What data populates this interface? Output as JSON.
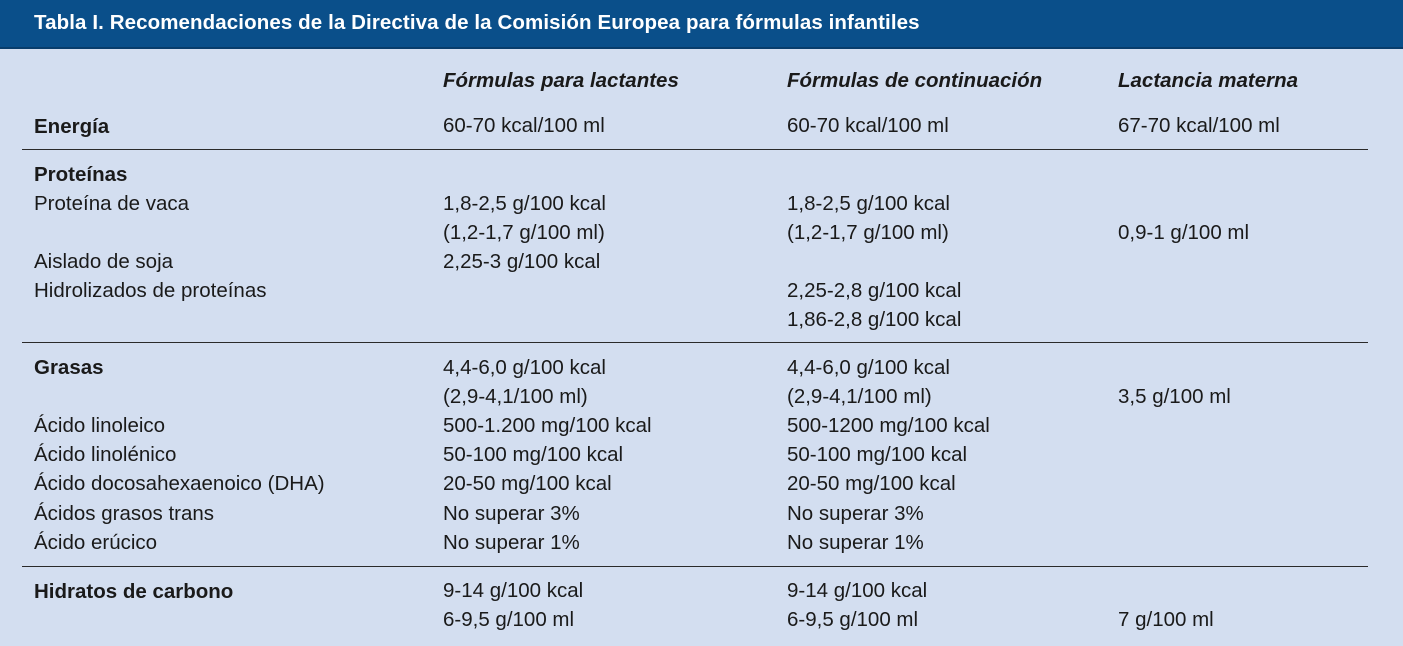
{
  "table": {
    "title": "Tabla I.  Recomendaciones de la Directiva de la Comisión Europea para fórmulas infantiles",
    "headers": {
      "col1": "Fórmulas para lactantes",
      "col2": "Fórmulas de continuación",
      "col3": "Lactancia materna"
    },
    "energia": {
      "label": "Energía",
      "col1": "60-70 kcal/100 ml",
      "col2": "60-70 kcal/100 ml",
      "col3": "67-70 kcal/100 ml"
    },
    "proteinas": {
      "label": "Proteínas",
      "vaca_label": "Proteína de vaca",
      "vaca_col1_a": "1,8-2,5 g/100 kcal",
      "vaca_col1_b": "(1,2-1,7 g/100 ml)",
      "vaca_col2_a": "1,8-2,5 g/100 kcal",
      "vaca_col2_b": "(1,2-1,7 g/100 ml)",
      "col3": "0,9-1 g/100 ml",
      "soja_label": "Aislado de soja",
      "soja_col1": "2,25-3 g/100 kcal",
      "hidro_label": "Hidrolizados de proteínas",
      "hidro_col2_a": "2,25-2,8 g/100 kcal",
      "hidro_col2_b": "1,86-2,8 g/100 kcal"
    },
    "grasas": {
      "label": "Grasas",
      "col1_a": "4,4-6,0 g/100 kcal",
      "col1_b": "(2,9-4,1/100 ml)",
      "col2_a": "4,4-6,0 g/100 kcal",
      "col2_b": "(2,9-4,1/100 ml)",
      "col3": "3,5 g/100 ml",
      "linoleico_label": "Ácido linoleico",
      "linoleico_col1": "500-1.200 mg/100 kcal",
      "linoleico_col2": "500-1200 mg/100 kcal",
      "linolenico_label": "Ácido linolénico",
      "linolenico_col1": "50-100 mg/100 kcal",
      "linolenico_col2": "50-100 mg/100 kcal",
      "dha_label": "Ácido docosahexaenoico (DHA)",
      "dha_col1": "20-50 mg/100 kcal",
      "dha_col2": "20-50 mg/100 kcal",
      "trans_label": "Ácidos grasos trans",
      "trans_col1": "No superar 3%",
      "trans_col2": "No superar 3%",
      "erucico_label": "Ácido erúcico",
      "erucico_col1": "No superar 1%",
      "erucico_col2": "No superar 1%"
    },
    "hidratos": {
      "label": "Hidratos de carbono",
      "col1_a": "9-14 g/100 kcal",
      "col1_b": "6-9,5 g/100 ml",
      "col2_a": "9-14 g/100 kcal",
      "col2_b": "6-9,5 g/100 ml",
      "col3": "7 g/100 ml"
    }
  }
}
